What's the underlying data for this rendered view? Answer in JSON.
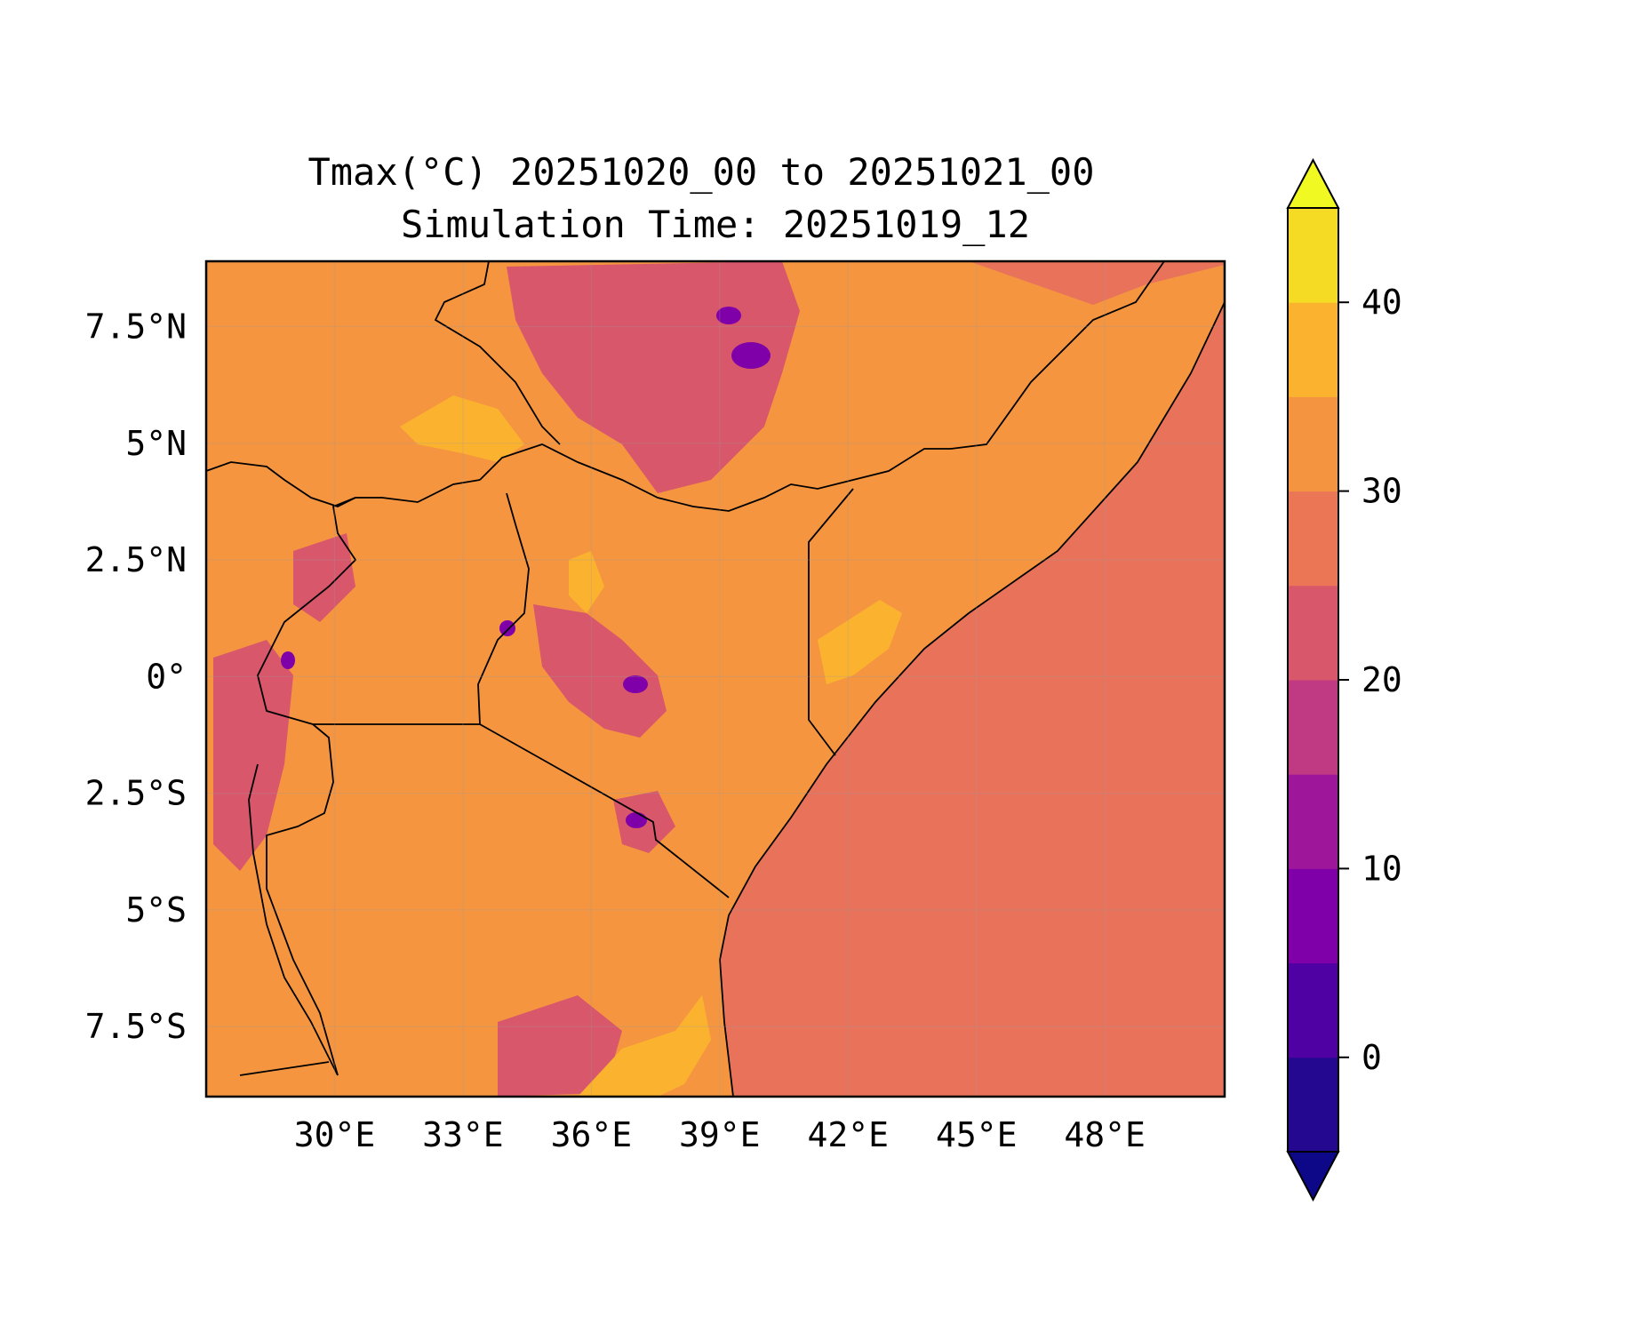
{
  "title_line1": "Tmax(°C) 20251020_00 to 20251021_00",
  "title_line2": "Simulation Time: 20251019_12",
  "map": {
    "projection": "PlateCarree",
    "lon_range": [
      27.0,
      50.8
    ],
    "lat_range": [
      -9.0,
      8.9
    ],
    "x_ticks": [
      {
        "value": 30,
        "label": "30°E"
      },
      {
        "value": 33,
        "label": "33°E"
      },
      {
        "value": 36,
        "label": "36°E"
      },
      {
        "value": 39,
        "label": "39°E"
      },
      {
        "value": 42,
        "label": "42°E"
      },
      {
        "value": 45,
        "label": "45°E"
      },
      {
        "value": 48,
        "label": "48°E"
      }
    ],
    "y_ticks": [
      {
        "value": 7.5,
        "label": "7.5°N"
      },
      {
        "value": 5,
        "label": "5°N"
      },
      {
        "value": 2.5,
        "label": "2.5°N"
      },
      {
        "value": 0,
        "label": "0°"
      },
      {
        "value": -2.5,
        "label": "2.5°S"
      },
      {
        "value": -5,
        "label": "5°S"
      },
      {
        "value": -7.5,
        "label": "7.5°S"
      }
    ],
    "gridlines": true,
    "ocean_color": "#e8735a",
    "land_base_color": "#f59540",
    "border_color": "#000000"
  },
  "colorbar": {
    "position": "right",
    "extend": "both",
    "levels": [
      -5,
      0,
      5,
      10,
      15,
      20,
      25,
      30,
      35,
      40,
      45
    ],
    "colors": [
      "#24088f",
      "#5001a3",
      "#7f00a8",
      "#9e179b",
      "#c03a83",
      "#d8576b",
      "#eb7655",
      "#f59440",
      "#fbb32f",
      "#f5db24"
    ],
    "under_color": "#0d0887",
    "over_color": "#f0f921",
    "ticks": [
      {
        "value": 0,
        "label": "0"
      },
      {
        "value": 10,
        "label": "10"
      },
      {
        "value": 20,
        "label": "20"
      },
      {
        "value": 30,
        "label": "30"
      },
      {
        "value": 40,
        "label": "40"
      }
    ]
  }
}
